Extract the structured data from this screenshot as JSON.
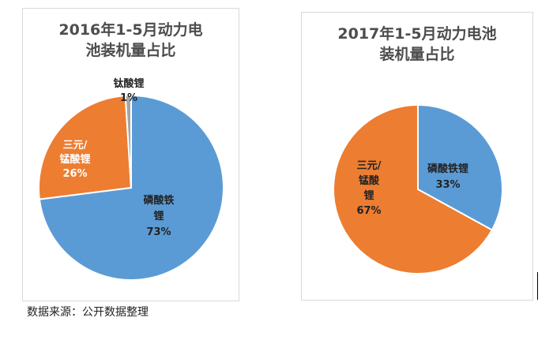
{
  "chart_data": [
    {
      "type": "pie",
      "title": "2016年1-5月动力电\n池装机量占比",
      "slices": [
        {
          "name": "磷酸铁锂",
          "label_lines": [
            "磷酸铁",
            "锂"
          ],
          "value": 73,
          "value_label": "73%",
          "color": "#5b9bd5",
          "label_color": "#222222"
        },
        {
          "name": "三元/锰酸锂",
          "label_lines": [
            "三元/",
            "锰酸锂"
          ],
          "value": 26,
          "value_label": "26%",
          "color": "#ed7d31",
          "label_color": "#ffffff"
        },
        {
          "name": "钛酸锂",
          "label_lines": [
            "钛酸锂"
          ],
          "value": 1,
          "value_label": "1%",
          "color": "#a5a5a5",
          "label_color": "#222222"
        }
      ]
    },
    {
      "type": "pie",
      "title": "2017年1-5月动力电池\n装机量占比",
      "slices": [
        {
          "name": "磷酸铁锂",
          "label_lines": [
            "磷酸铁锂"
          ],
          "value": 33,
          "value_label": "33%",
          "color": "#5b9bd5",
          "label_color": "#222222"
        },
        {
          "name": "三元/锰酸锂",
          "label_lines": [
            "三元/",
            "锰酸",
            "锂"
          ],
          "value": 67,
          "value_label": "67%",
          "color": "#ed7d31",
          "label_color": "#222222"
        }
      ]
    }
  ],
  "source_note": "数据来源：公开数据整理"
}
